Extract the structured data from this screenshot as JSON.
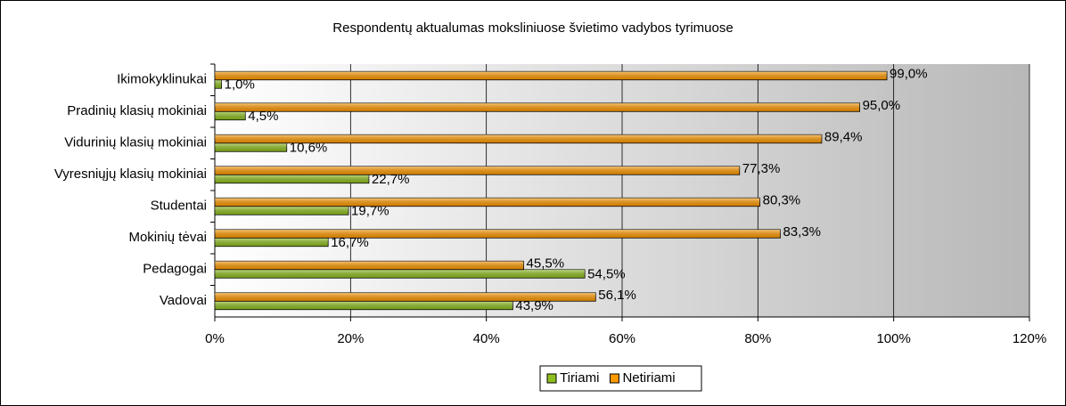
{
  "chart_data": {
    "type": "hbar",
    "title": "Respondentų aktualumas moksliniuose švietimo vadybos tyrimuose",
    "categories": [
      "Ikimokyklinukai",
      "Pradinių klasių mokiniai",
      "Vidurinių klasių mokiniai",
      "Vyresniųjų klasių mokiniai",
      "Studentai",
      "Mokinių tėvai",
      "Pedagogai",
      "Vadovai"
    ],
    "series": [
      {
        "name": "Tiriami",
        "color": "#8fbf1f",
        "values": [
          1.0,
          4.5,
          10.6,
          22.7,
          19.7,
          16.7,
          54.5,
          43.9
        ],
        "value_labels": [
          "1,0%",
          "4,5%",
          "10,6%",
          "22,7%",
          "19,7%",
          "16,7%",
          "54,5%",
          "43,9%"
        ]
      },
      {
        "name": "Netiriami",
        "color": "#ff9a00",
        "values": [
          99.0,
          95.0,
          89.4,
          77.3,
          80.3,
          83.3,
          45.5,
          56.1
        ],
        "value_labels": [
          "99,0%",
          "95,0%",
          "89,4%",
          "77,3%",
          "80,3%",
          "83,3%",
          "45,5%",
          "56,1%"
        ]
      }
    ],
    "xlim": [
      0,
      120
    ],
    "xticks": [
      {
        "value": 0,
        "label": "0%"
      },
      {
        "value": 20,
        "label": "20%"
      },
      {
        "value": 40,
        "label": "40%"
      },
      {
        "value": 60,
        "label": "60%"
      },
      {
        "value": 80,
        "label": "80%"
      },
      {
        "value": 100,
        "label": "100%"
      },
      {
        "value": 120,
        "label": "120%"
      }
    ],
    "grid": true,
    "legend": "bottom"
  }
}
